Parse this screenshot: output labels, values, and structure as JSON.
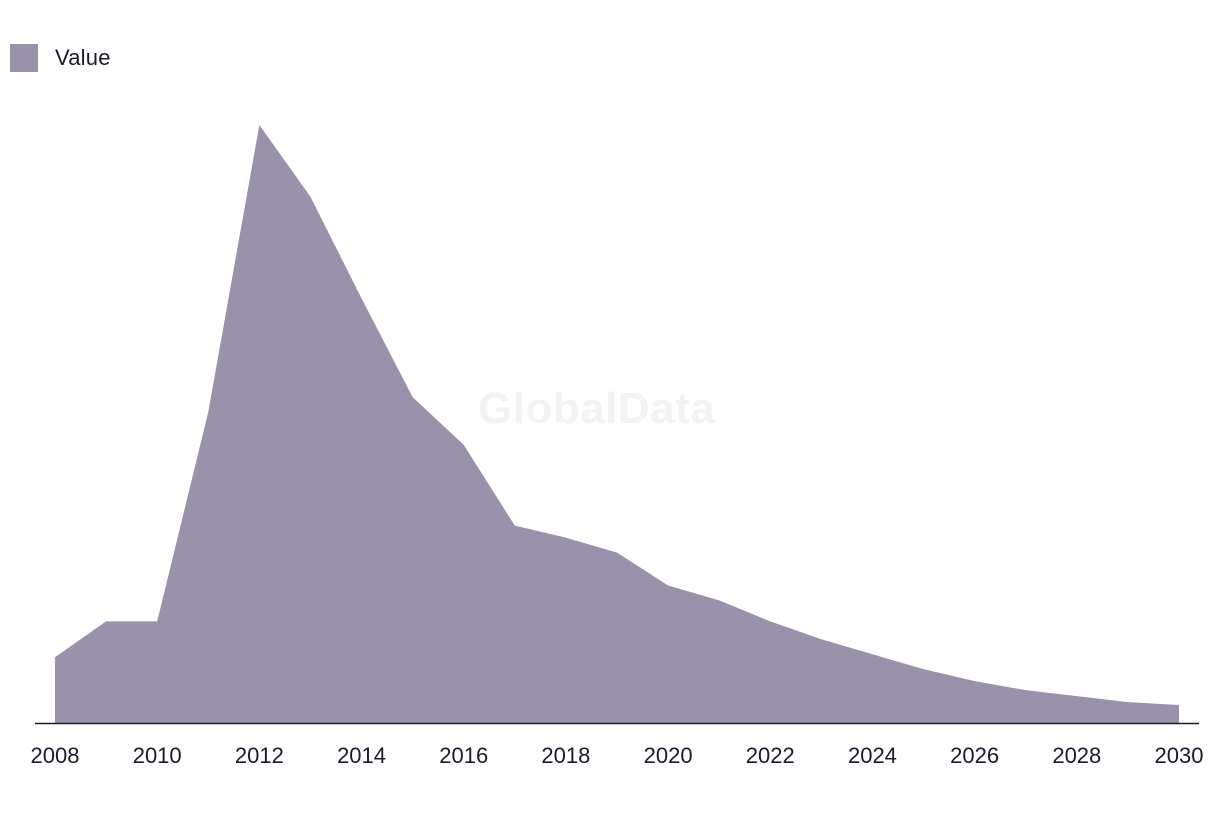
{
  "chart_data": {
    "type": "area",
    "title": "",
    "xlabel": "",
    "ylabel": "",
    "x": [
      2008,
      2009,
      2010,
      2011,
      2012,
      2013,
      2014,
      2015,
      2016,
      2017,
      2018,
      2019,
      2020,
      2021,
      2022,
      2023,
      2024,
      2025,
      2026,
      2027,
      2028,
      2029,
      2030
    ],
    "series": [
      {
        "name": "Value",
        "color": "#9a91aa",
        "values": [
          11,
          17,
          17,
          52,
          100,
          88,
          71,
          54.5,
          46.5,
          33,
          31,
          28.5,
          23,
          20.5,
          17,
          14,
          11.5,
          9,
          7,
          5.5,
          4.5,
          3.5,
          3
        ]
      }
    ],
    "xticks": [
      "2008",
      "2010",
      "2012",
      "2014",
      "2016",
      "2018",
      "2020",
      "2022",
      "2024",
      "2026",
      "2028",
      "2030"
    ],
    "ylim": [
      0,
      100
    ],
    "grid": false,
    "legend": "top-left"
  },
  "legend": {
    "label": "Value"
  },
  "watermark": "GlobalData"
}
